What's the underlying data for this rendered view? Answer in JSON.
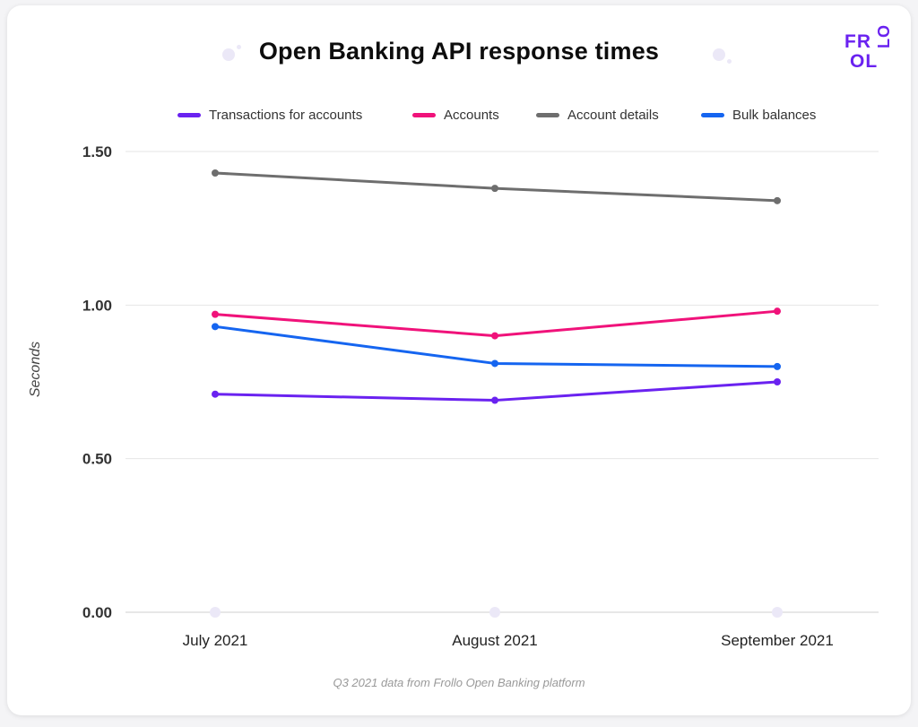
{
  "logo": {
    "row1": "FR",
    "row2": "OL",
    "vert": "LO"
  },
  "colors": {
    "transactions": "#6a22f0",
    "accounts": "#f0127a",
    "account_details": "#6e6e6e",
    "bulk_balances": "#1565f0",
    "grid": "#e6e6e6"
  },
  "footnote": "Q3 2021 data from Frollo Open Banking platform",
  "chart_data": {
    "type": "line",
    "title": "Open Banking API response times",
    "xlabel": "",
    "ylabel": "Seconds",
    "categories": [
      "July 2021",
      "August 2021",
      "September 2021"
    ],
    "yticks": [
      "1.50",
      "1.00",
      "0.50",
      "0.00"
    ],
    "ylim": [
      0,
      1.5
    ],
    "grid": true,
    "legend_position": "top",
    "series": [
      {
        "name": "Transactions for accounts",
        "color": "#6a22f0",
        "values": [
          0.71,
          0.69,
          0.75
        ]
      },
      {
        "name": "Accounts",
        "color": "#f0127a",
        "values": [
          0.97,
          0.9,
          0.98
        ]
      },
      {
        "name": "Account details",
        "color": "#6e6e6e",
        "values": [
          1.43,
          1.38,
          1.34
        ]
      },
      {
        "name": "Bulk balances",
        "color": "#1565f0",
        "values": [
          0.93,
          0.81,
          0.8
        ]
      }
    ]
  }
}
